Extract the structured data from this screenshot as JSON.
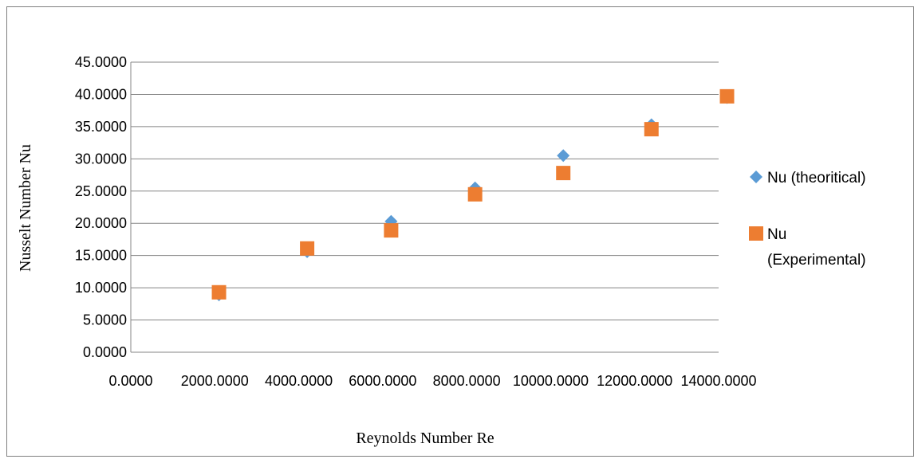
{
  "chart_data": {
    "type": "scatter",
    "title": "",
    "xlabel": "Reynolds  Number Re",
    "ylabel": "Nusselt Number Nu",
    "xlim": [
      0,
      14000
    ],
    "ylim": [
      0,
      45
    ],
    "x_ticks": [
      "0.0000",
      "2000.0000",
      "4000.0000",
      "6000.0000",
      "8000.0000",
      "10000.0000",
      "12000.0000",
      "14000.0000"
    ],
    "y_ticks": [
      "0.0000",
      "5.0000",
      "10.0000",
      "15.0000",
      "20.0000",
      "25.0000",
      "30.0000",
      "35.0000",
      "40.0000",
      "45.0000"
    ],
    "x_tick_values": [
      0,
      2000,
      4000,
      6000,
      8000,
      10000,
      12000,
      14000
    ],
    "y_tick_values": [
      0,
      5,
      10,
      15,
      20,
      25,
      30,
      35,
      40,
      45
    ],
    "grid": "horizontal",
    "legend_position": "right",
    "series": [
      {
        "name": "Nu (theoritical)",
        "marker": "diamond",
        "color": "#5b9bd5",
        "points": [
          {
            "x": 2100,
            "y": 8.9
          },
          {
            "x": 4200,
            "y": 15.6
          },
          {
            "x": 6200,
            "y": 20.3
          },
          {
            "x": 8200,
            "y": 25.5
          },
          {
            "x": 10300,
            "y": 30.5
          },
          {
            "x": 12400,
            "y": 35.3
          },
          {
            "x": 14200,
            "y": 39.5
          }
        ]
      },
      {
        "name_lines": [
          "Nu",
          "(Experimental)"
        ],
        "marker": "square",
        "color": "#ed7d31",
        "points": [
          {
            "x": 2100,
            "y": 9.3
          },
          {
            "x": 4200,
            "y": 16.1
          },
          {
            "x": 6200,
            "y": 18.9
          },
          {
            "x": 8200,
            "y": 24.5
          },
          {
            "x": 10300,
            "y": 27.8
          },
          {
            "x": 12400,
            "y": 34.6
          },
          {
            "x": 14200,
            "y": 39.7
          }
        ]
      }
    ]
  }
}
